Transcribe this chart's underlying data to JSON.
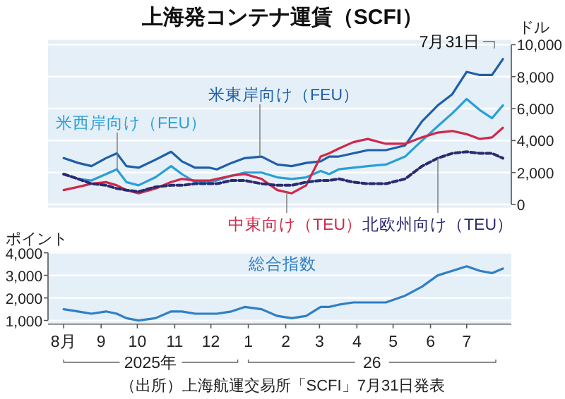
{
  "chart_data": [
    {
      "type": "line",
      "title": "上海発コンテナ運賃（SCFI）",
      "ylabel": "ドル",
      "grid": "y",
      "tick_labels": "y",
      "x": [
        "2025-08-01",
        "2025-08-13",
        "2025-08-24",
        "2025-09-05",
        "2025-09-14",
        "2025-09-22",
        "2025-10-02",
        "2025-10-16",
        "2025-10-29",
        "2025-11-07",
        "2025-11-18",
        "2025-11-30",
        "2025-12-06",
        "2025-12-18",
        "2025-12-29",
        "2026-01-12",
        "2026-01-25",
        "2026-02-06",
        "2026-02-18",
        "2026-03-02",
        "2026-03-09",
        "2026-03-17",
        "2026-03-29",
        "2026-04-10",
        "2026-04-25",
        "2026-05-11",
        "2026-05-25",
        "2026-06-07",
        "2026-06-19",
        "2026-07-01",
        "2026-07-12",
        "2026-07-22",
        "2026-07-31"
      ],
      "xlim": [
        "2025-07-19",
        "2026-08-07"
      ],
      "ylim": [
        -200,
        10300
      ],
      "yticks": [
        0,
        {
          "value": 2000,
          "label": "2,000"
        },
        {
          "value": 4000,
          "label": "4,000"
        },
        {
          "value": 6000,
          "label": "6,000"
        },
        {
          "value": 8000,
          "label": "8,000"
        },
        {
          "value": 10000,
          "label": "10,000"
        }
      ],
      "series": [
        {
          "name": "米東岸向け（FEU）",
          "color": "#1f5fa8",
          "line_style": "solid",
          "values": [
            2900,
            2600,
            2400,
            2900,
            3200,
            2400,
            2300,
            2800,
            3300,
            2700,
            2300,
            2300,
            2200,
            2600,
            2900,
            3000,
            2500,
            2400,
            2600,
            2700,
            3000,
            3000,
            3200,
            3400,
            3400,
            3700,
            5200,
            6200,
            6900,
            8300,
            8100,
            8100,
            9100
          ]
        },
        {
          "name": "米西岸向け（FEU）",
          "color": "#2a9fd8",
          "line_style": "solid",
          "values": [
            1900,
            1600,
            1500,
            1900,
            2200,
            1400,
            1200,
            1700,
            2400,
            1900,
            1400,
            1400,
            1500,
            1800,
            2000,
            2000,
            1700,
            1600,
            1700,
            2100,
            1900,
            2200,
            2300,
            2400,
            2500,
            3000,
            4000,
            4900,
            5700,
            6600,
            5900,
            5400,
            6200
          ]
        },
        {
          "name": "中東向け（TEU）",
          "color": "#d0284a",
          "line_style": "solid",
          "values": [
            900,
            1100,
            1300,
            1400,
            1200,
            900,
            700,
            1000,
            1400,
            1600,
            1500,
            1500,
            1600,
            1800,
            1900,
            1600,
            900,
            700,
            1200,
            3000,
            3200,
            3500,
            3900,
            4100,
            3800,
            3800,
            4200,
            4500,
            4600,
            4400,
            4100,
            4200,
            4800
          ]
        },
        {
          "name": "北欧州向け（TEU）",
          "color": "#2a2a70",
          "line_style": "dashed",
          "values": [
            1900,
            1600,
            1300,
            1200,
            1000,
            900,
            800,
            1100,
            1200,
            1200,
            1300,
            1300,
            1300,
            1500,
            1500,
            1300,
            1200,
            1200,
            1400,
            1500,
            1500,
            1600,
            1400,
            1300,
            1300,
            1600,
            2400,
            2900,
            3200,
            3300,
            3200,
            3200,
            2900
          ]
        }
      ],
      "annotations": [
        {
          "text": "7月31日",
          "x": "2026-07-31",
          "y": 9060
        }
      ]
    },
    {
      "type": "line",
      "ylabel": "ポイント",
      "grid": "y",
      "x": [
        "2025-08-01",
        "2025-08-13",
        "2025-08-24",
        "2025-09-05",
        "2025-09-14",
        "2025-09-22",
        "2025-10-02",
        "2025-10-16",
        "2025-10-29",
        "2025-11-07",
        "2025-11-18",
        "2025-11-30",
        "2025-12-06",
        "2025-12-18",
        "2025-12-29",
        "2026-01-12",
        "2026-01-25",
        "2026-02-06",
        "2026-02-18",
        "2026-03-02",
        "2026-03-09",
        "2026-03-17",
        "2026-03-29",
        "2026-04-10",
        "2026-04-25",
        "2026-05-11",
        "2026-05-25",
        "2026-06-07",
        "2026-06-19",
        "2026-07-01",
        "2026-07-12",
        "2026-07-22",
        "2026-07-31"
      ],
      "xlim": [
        "2025-07-19",
        "2026-08-07"
      ],
      "xticks": [
        {
          "value": "2025-08-01",
          "label": "8月"
        },
        {
          "value": "2025-09-01",
          "label": "9"
        },
        {
          "value": "2025-10-01",
          "label": "10"
        },
        {
          "value": "2025-11-01",
          "label": "11"
        },
        {
          "value": "2025-12-01",
          "label": "12"
        },
        {
          "value": "2026-01-01",
          "label": "1"
        },
        {
          "value": "2026-02-01",
          "label": "2"
        },
        {
          "value": "2026-03-01",
          "label": "3"
        },
        {
          "value": "2026-04-01",
          "label": "4"
        },
        {
          "value": "2026-05-01",
          "label": "5"
        },
        {
          "value": "2026-06-01",
          "label": "6"
        },
        {
          "value": "2026-07-01",
          "label": "7"
        }
      ],
      "ylim": [
        900,
        4050
      ],
      "yticks": [
        {
          "value": 1000,
          "label": "1,000"
        },
        {
          "value": 2000,
          "label": "2,000"
        },
        {
          "value": 3000,
          "label": "3,000"
        },
        {
          "value": 4000,
          "label": "4,000"
        }
      ],
      "series": [
        {
          "name": "総合指数",
          "color": "#2f7fc6",
          "line_style": "solid",
          "values": [
            1500,
            1400,
            1300,
            1400,
            1300,
            1100,
            1000,
            1100,
            1400,
            1400,
            1300,
            1300,
            1300,
            1400,
            1600,
            1500,
            1200,
            1100,
            1200,
            1600,
            1600,
            1700,
            1800,
            1800,
            1800,
            2100,
            2500,
            3000,
            3200,
            3400,
            3200,
            3100,
            3300
          ]
        }
      ],
      "annotations": [
        "2025年",
        "26",
        "（出所）上海航運交易所「SCFI」7月31日発表"
      ]
    }
  ]
}
